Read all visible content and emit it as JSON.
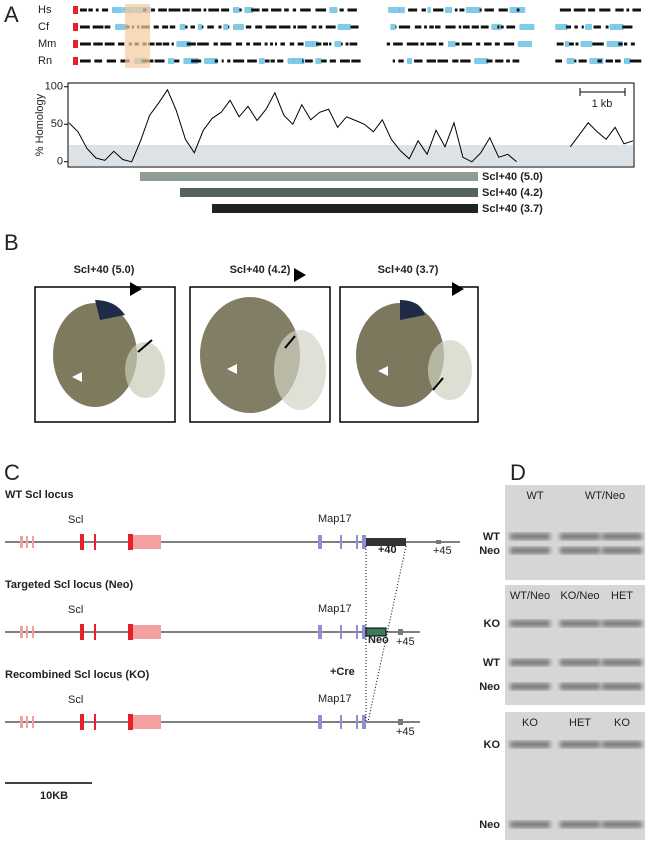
{
  "panels": {
    "a": "A",
    "b": "B",
    "c": "C",
    "d": "D"
  },
  "species": [
    "Hs",
    "Cf",
    "Mm",
    "Rn"
  ],
  "homology": {
    "ylabel": "% Homology",
    "ylim": [
      -7,
      105
    ],
    "yticks": [
      0,
      50,
      100
    ],
    "values": [
      52,
      40,
      18,
      5,
      2,
      14,
      3,
      0,
      28,
      62,
      78,
      96,
      68,
      30,
      12,
      42,
      58,
      66,
      82,
      60,
      74,
      55,
      70,
      92,
      62,
      50,
      76,
      56,
      66,
      70,
      46,
      60,
      55,
      50,
      40,
      56,
      30,
      15,
      4,
      28,
      10,
      42,
      20,
      52,
      6,
      0,
      12,
      32,
      6,
      10,
      0,
      null,
      null,
      null,
      null,
      null,
      20,
      36,
      52,
      40,
      30,
      46,
      24,
      28
    ],
    "scale": "1 kb"
  },
  "constructs": [
    "Scl+40 (5.0)",
    "Scl+40 (4.2)",
    "Scl+40 (3.7)"
  ],
  "embryos": [
    "Scl+40 (5.0)",
    "Scl+40 (4.2)",
    "Scl+40 (3.7)"
  ],
  "loci": [
    {
      "title": "WT Scl locus",
      "gene1": "Scl",
      "gene2": "Map17",
      "element": "+40",
      "element2": "+45"
    },
    {
      "title": "Targeted  Scl locus (Neo)",
      "gene1": "Scl",
      "gene2": "Map17",
      "element": "Neo",
      "element2": "+45"
    },
    {
      "title": "Recombined Scl locus (KO)",
      "gene1": "Scl",
      "gene2": "Map17",
      "element2": "+45",
      "note": "+Cre"
    }
  ],
  "scalebar": "10KB",
  "blots": [
    {
      "lanes": [
        "WT",
        "WT/Neo"
      ],
      "bands": [
        "WT",
        "Neo"
      ]
    },
    {
      "lanes": [
        "WT/Neo",
        "KO/Neo",
        "HET"
      ],
      "bands": [
        "KO",
        "WT",
        "Neo"
      ]
    },
    {
      "lanes": [
        "KO",
        "HET",
        "KO"
      ],
      "bands": [
        "KO",
        "Neo"
      ]
    }
  ]
}
